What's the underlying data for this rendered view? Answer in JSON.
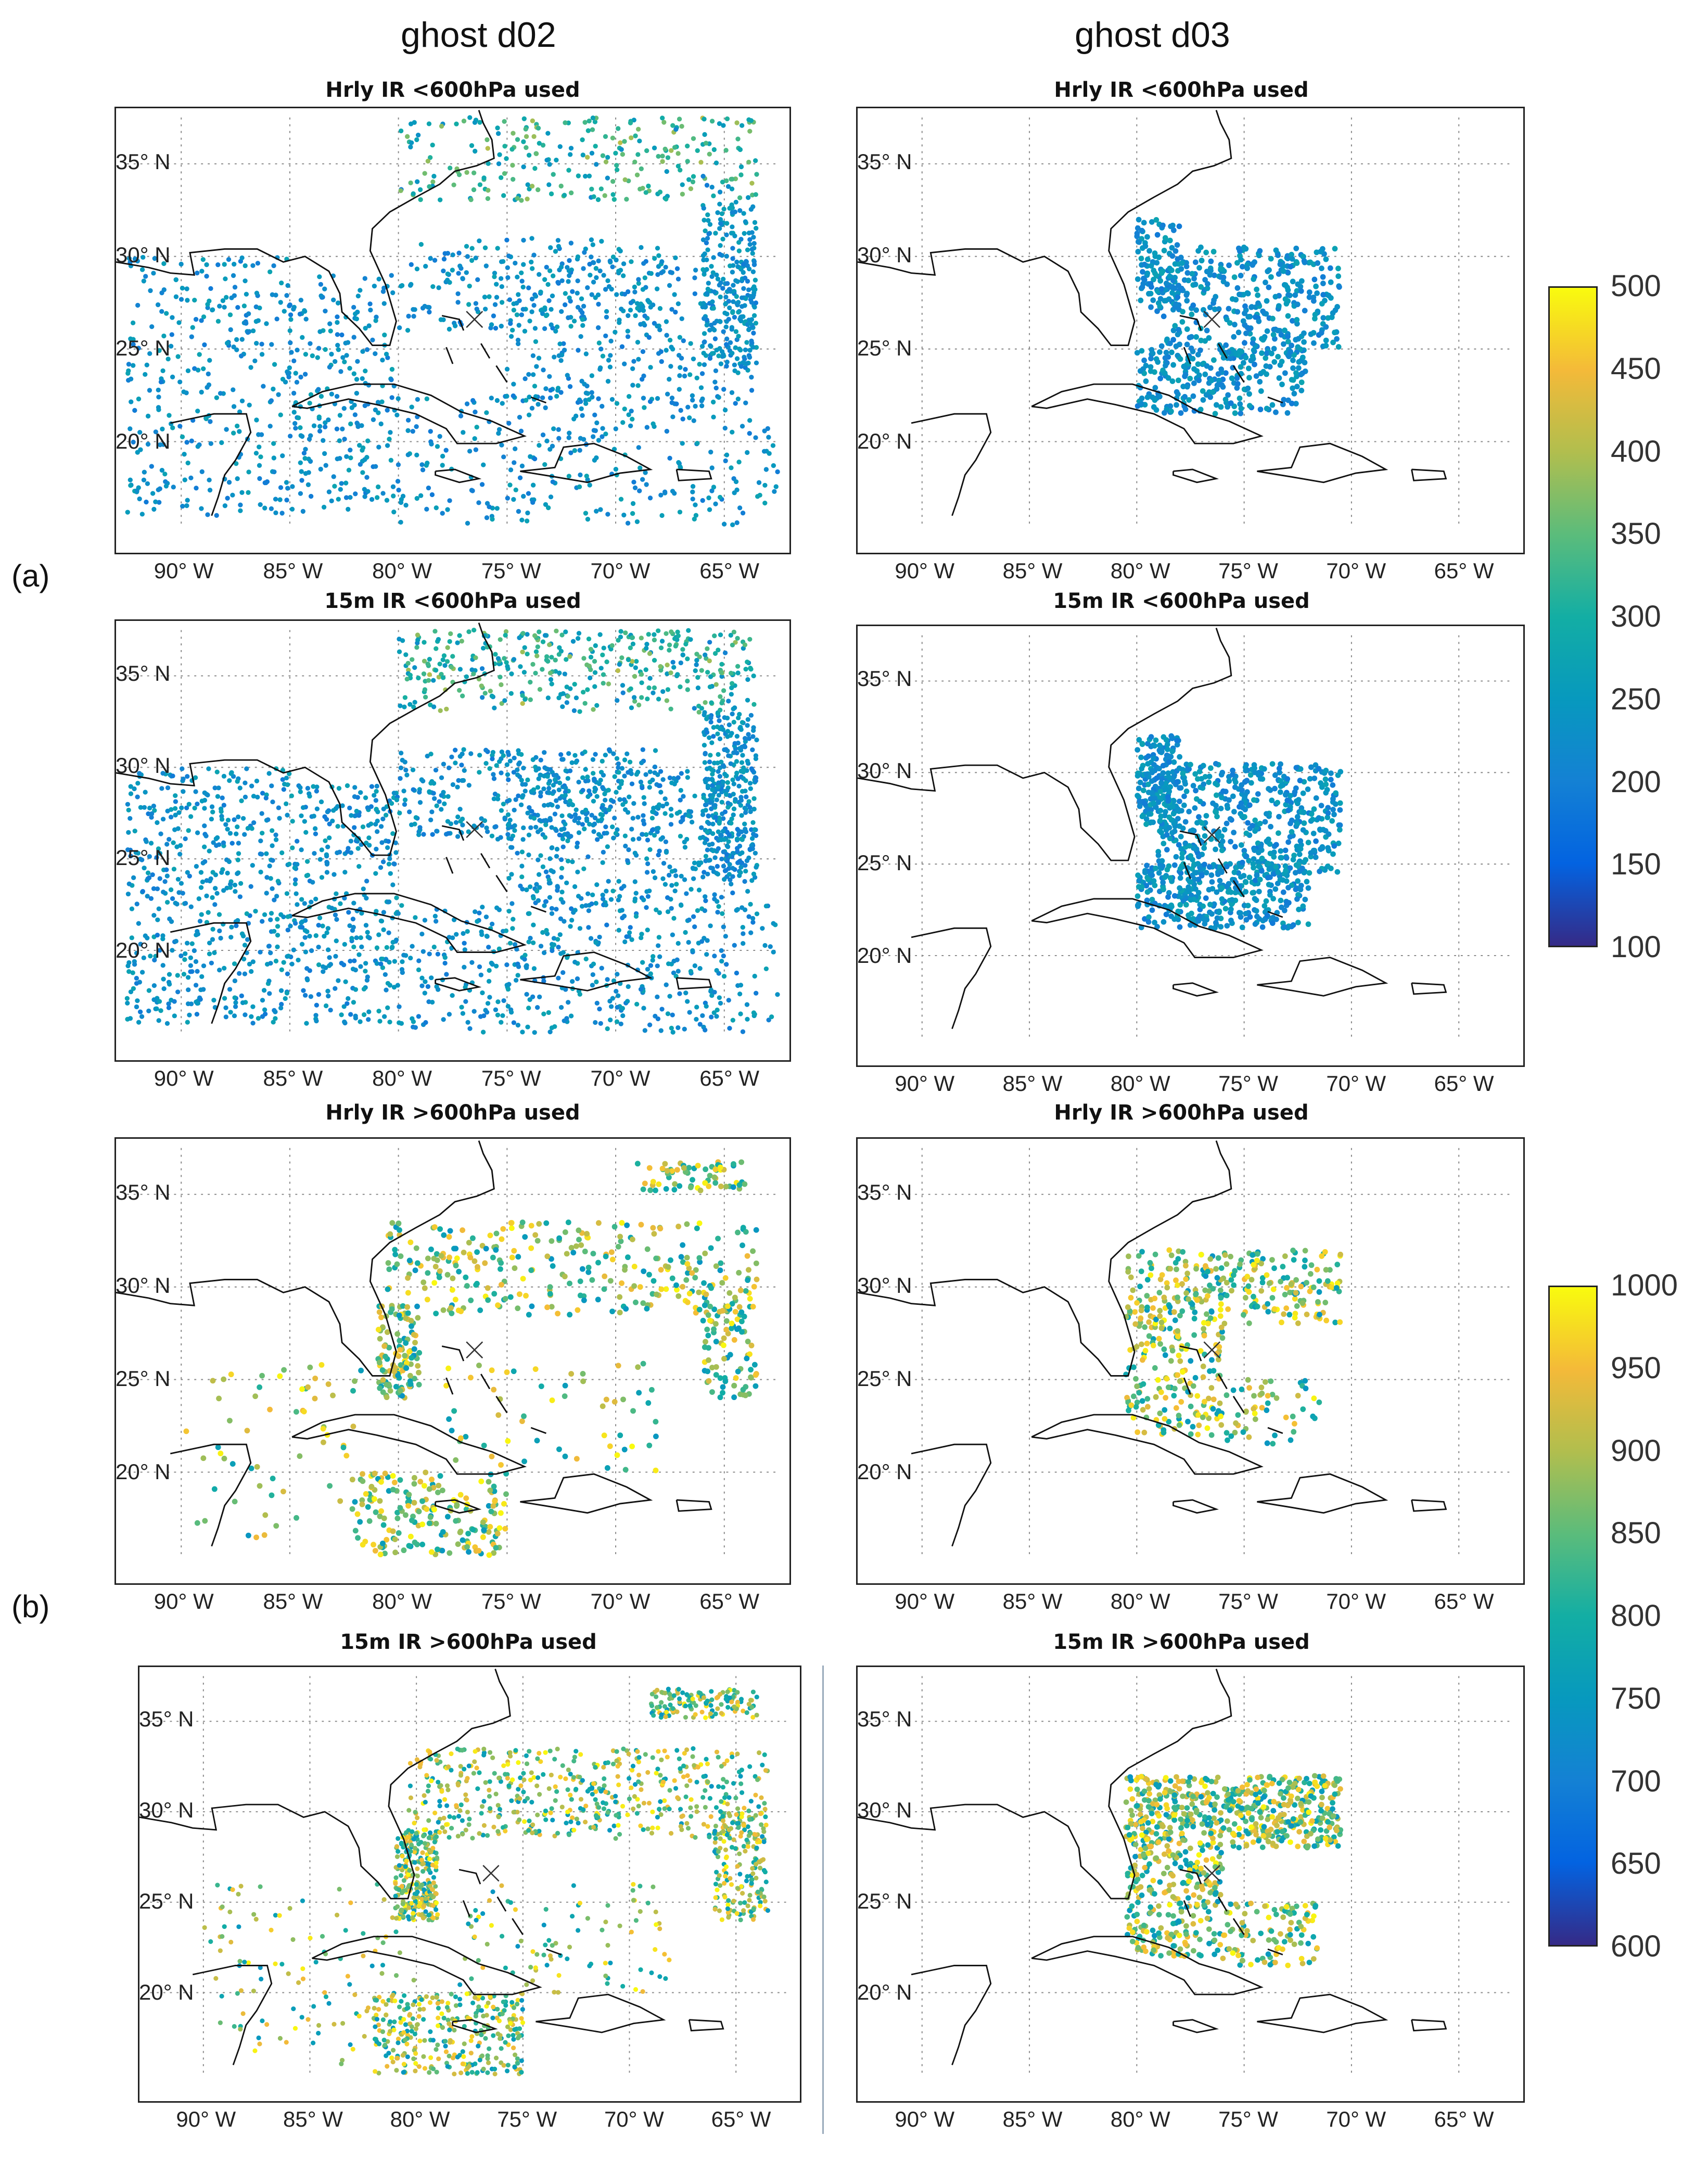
{
  "columns": [
    "ghost d02",
    "ghost d03"
  ],
  "row_labels": [
    "(a)",
    "(b)"
  ],
  "panels": [
    {
      "title": "Hrly IR <600hPa used"
    },
    {
      "title": "Hrly IR <600hPa used"
    },
    {
      "title": "15m IR <600hPa used"
    },
    {
      "title": "15m IR <600hPa used"
    },
    {
      "title": "Hrly IR >600hPa used"
    },
    {
      "title": "Hrly IR >600hPa used"
    },
    {
      "title": "15m IR >600hPa used"
    },
    {
      "title": "15m IR >600hPa used"
    }
  ],
  "lat_labels": [
    "35° N",
    "30° N",
    "25° N",
    "20° N"
  ],
  "lon_labels": [
    "90° W",
    "85° W",
    "80° W",
    "75° W",
    "70° W",
    "65° W"
  ],
  "colorbars": [
    {
      "ticks": [
        "500",
        "450",
        "400",
        "350",
        "300",
        "250",
        "200",
        "150",
        "100"
      ],
      "min": 100,
      "max": 500,
      "colormap": "parula"
    },
    {
      "ticks": [
        "1000",
        "950",
        "900",
        "850",
        "800",
        "750",
        "700",
        "650",
        "600"
      ],
      "min": 600,
      "max": 1000,
      "colormap": "parula"
    }
  ],
  "storm_center_marker": "x-icon",
  "colors": {
    "coast": "#111111",
    "grid": "#8a8a8a"
  }
}
